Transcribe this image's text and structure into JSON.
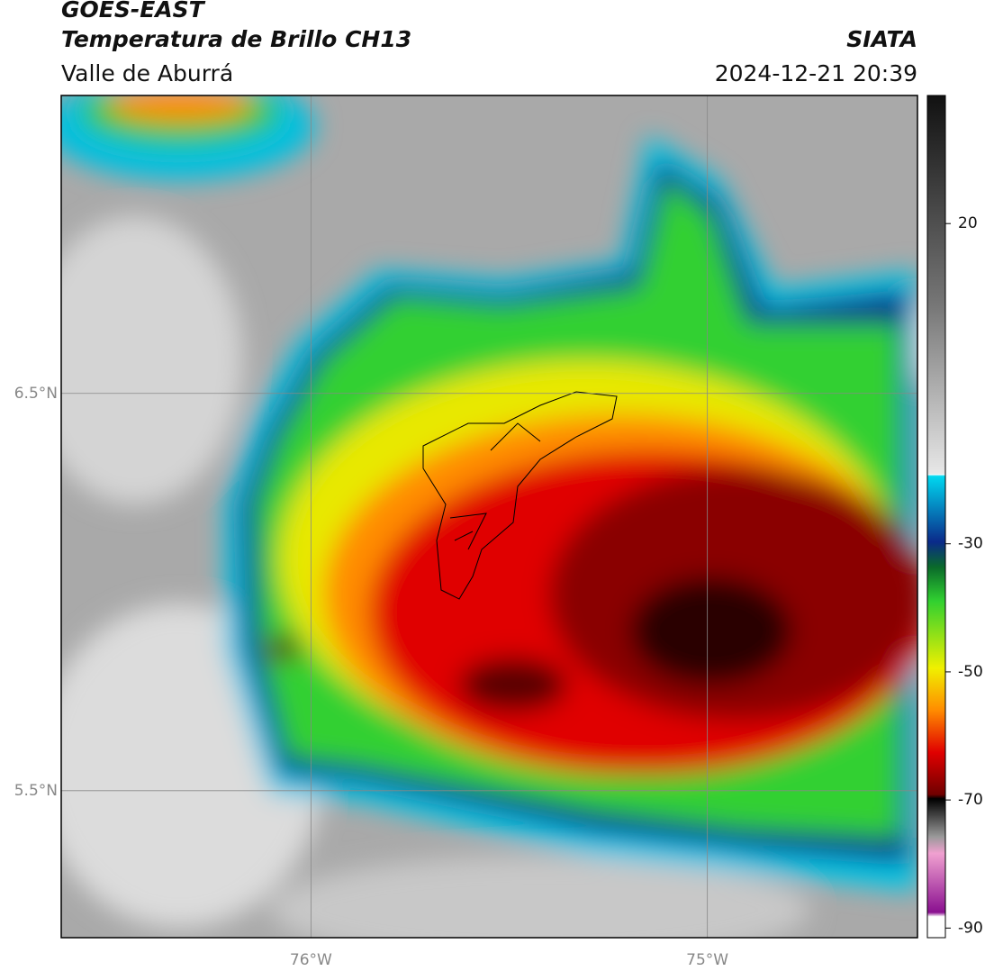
{
  "header": {
    "satellite": "GOES-EAST",
    "product": "Temperatura de Brillo CH13",
    "region": "Valle de Aburrá",
    "source": "SIATA",
    "datetime": "2024-12-21 20:39"
  },
  "map": {
    "xlim": [
      -76.63,
      -74.47
    ],
    "ylim": [
      5.13,
      7.25
    ],
    "xticks": [
      {
        "value": -76,
        "label": "76°W"
      },
      {
        "value": -75,
        "label": "75°W"
      }
    ],
    "yticks": [
      {
        "value": 5.5,
        "label": "5.5°N"
      },
      {
        "value": 6.5,
        "label": "6.5°N"
      }
    ],
    "grid": true
  },
  "colorbar": {
    "lim": [
      -91.5,
      40
    ],
    "ticks": [
      20,
      -30,
      -50,
      -70,
      -90
    ]
  }
}
